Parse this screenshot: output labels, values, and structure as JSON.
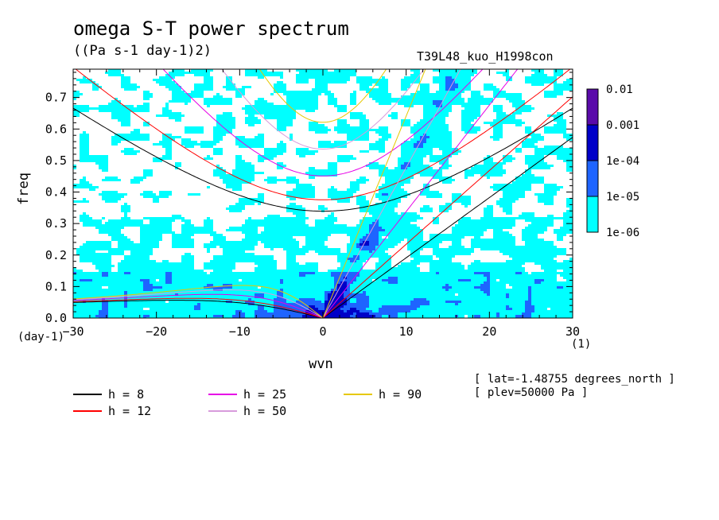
{
  "chart_data": {
    "type": "heatmap",
    "title": "omega S-T power spectrum",
    "units": "((Pa s-1 day-1)2)",
    "run_label": "T39L48_kuo_H1998con",
    "xlabel": "wvn",
    "ylabel": "freq",
    "x_unit": "(1)",
    "y_unit": "(day-1)",
    "xlim": [
      -30,
      30
    ],
    "ylim": [
      0,
      0.79
    ],
    "x_ticks": [
      -30,
      -20,
      -10,
      0,
      10,
      20,
      30
    ],
    "y_ticks": [
      0.0,
      0.1,
      0.2,
      0.3,
      0.4,
      0.5,
      0.6,
      0.7
    ],
    "colorbar": {
      "levels": [
        "1e-06",
        "1e-05",
        "1e-04",
        "0.001",
        "0.01"
      ],
      "colors": [
        "#00ffff",
        "#1e64ff",
        "#0000c8",
        "#5a0aaa"
      ]
    },
    "annotations": [
      "[ lat=-1.48755 degrees_north ]",
      "[ plev=50000 Pa ]"
    ],
    "legend": [
      {
        "label": "h =  8",
        "color": "#000000"
      },
      {
        "label": "h = 12",
        "color": "#ff0000"
      },
      {
        "label": "h = 25",
        "color": "#e600e6"
      },
      {
        "label": "h = 50",
        "color": "#d79bdc"
      },
      {
        "label": "h = 90",
        "color": "#e6c800"
      }
    ],
    "series": [
      {
        "name": "h =  8",
        "equivalent_depth": 8
      },
      {
        "name": "h = 12",
        "equivalent_depth": 12
      },
      {
        "name": "h = 25",
        "equivalent_depth": 25
      },
      {
        "name": "h = 50",
        "equivalent_depth": 50
      },
      {
        "name": "h = 90",
        "equivalent_depth": 90
      }
    ]
  }
}
